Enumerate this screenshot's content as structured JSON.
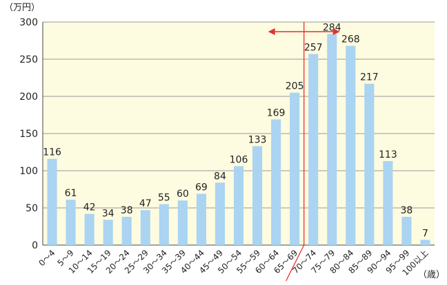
{
  "chart_data": {
    "type": "bar",
    "ylabel": "（万円）",
    "xlabel": "（歳）",
    "ylim": [
      0,
      300
    ],
    "yticks": [
      0,
      50,
      100,
      150,
      200,
      250,
      300
    ],
    "grid": true,
    "categories": [
      "0～4",
      "5～9",
      "10～14",
      "15～19",
      "20～24",
      "25～29",
      "30～34",
      "35～39",
      "40～44",
      "45～49",
      "50～54",
      "55～59",
      "60～64",
      "65～69",
      "70～74",
      "75～79",
      "80～84",
      "85～89",
      "90～94",
      "95～99",
      "100以上"
    ],
    "values": [
      116,
      61,
      42,
      34,
      38,
      47,
      55,
      60,
      69,
      84,
      106,
      133,
      169,
      205,
      257,
      284,
      268,
      217,
      113,
      38,
      7
    ],
    "colors": {
      "bar": "#aad4f2",
      "plot_bg": "#fdfbe0",
      "grid": "#9a9a9a",
      "annotation": "#e53030"
    },
    "annotation": {
      "type": "vertical-line-with-double-arrow",
      "between_categories": [
        "65～69",
        "70～74"
      ]
    }
  }
}
